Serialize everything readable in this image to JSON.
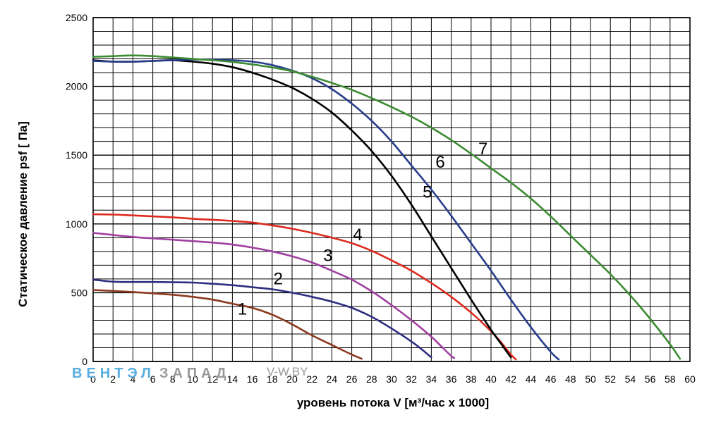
{
  "watermark": {
    "part1": "ВЕНТЭЛ",
    "part2": "ЗАПАД",
    "site": "V-W.BY",
    "color1": "#5aaee0",
    "color2": "#9a9a9a"
  },
  "chart_data": {
    "type": "line",
    "title": "",
    "xlabel": "уровень потока  V [м³/час х 1000]",
    "ylabel": "Статическое давление  psf [ Па]",
    "xlim": [
      0,
      60
    ],
    "ylim": [
      0,
      2500
    ],
    "x_ticks": [
      0,
      2,
      4,
      6,
      8,
      10,
      12,
      14,
      16,
      18,
      20,
      22,
      24,
      26,
      28,
      30,
      32,
      34,
      36,
      38,
      40,
      42,
      44,
      46,
      48,
      50,
      52,
      54,
      56,
      58,
      60
    ],
    "y_ticks": [
      0,
      500,
      1000,
      1500,
      2000,
      2500
    ],
    "grid": true,
    "legend": "none",
    "series": [
      {
        "name": "1",
        "color": "#8b3a1f",
        "points": [
          [
            0,
            520
          ],
          [
            4,
            505
          ],
          [
            8,
            485
          ],
          [
            10,
            470
          ],
          [
            12,
            450
          ],
          [
            14,
            420
          ],
          [
            16,
            390
          ],
          [
            18,
            340
          ],
          [
            20,
            270
          ],
          [
            22,
            190
          ],
          [
            24,
            120
          ],
          [
            26,
            50
          ],
          [
            27,
            20
          ]
        ],
        "label_at": [
          15,
          340
        ]
      },
      {
        "name": "2",
        "color": "#2e2e80",
        "points": [
          [
            0,
            595
          ],
          [
            2,
            580
          ],
          [
            4,
            578
          ],
          [
            6,
            578
          ],
          [
            8,
            576
          ],
          [
            10,
            574
          ],
          [
            12,
            565
          ],
          [
            14,
            555
          ],
          [
            16,
            540
          ],
          [
            18,
            525
          ],
          [
            20,
            500
          ],
          [
            22,
            470
          ],
          [
            24,
            435
          ],
          [
            26,
            390
          ],
          [
            28,
            325
          ],
          [
            30,
            240
          ],
          [
            32,
            145
          ],
          [
            33,
            90
          ],
          [
            34,
            30
          ]
        ],
        "label_at": [
          18.6,
          560
        ]
      },
      {
        "name": "3",
        "color": "#a040a0",
        "points": [
          [
            0,
            935
          ],
          [
            2,
            920
          ],
          [
            4,
            905
          ],
          [
            6,
            895
          ],
          [
            8,
            885
          ],
          [
            10,
            875
          ],
          [
            12,
            865
          ],
          [
            14,
            850
          ],
          [
            16,
            828
          ],
          [
            18,
            800
          ],
          [
            20,
            765
          ],
          [
            22,
            720
          ],
          [
            24,
            660
          ],
          [
            26,
            595
          ],
          [
            28,
            510
          ],
          [
            30,
            410
          ],
          [
            32,
            300
          ],
          [
            34,
            180
          ],
          [
            35,
            110
          ],
          [
            36,
            40
          ],
          [
            36.3,
            25
          ]
        ],
        "label_at": [
          23.6,
          730
        ]
      },
      {
        "name": "4",
        "color": "#dd2a1e",
        "points": [
          [
            0,
            1070
          ],
          [
            2,
            1068
          ],
          [
            4,
            1062
          ],
          [
            6,
            1055
          ],
          [
            8,
            1048
          ],
          [
            10,
            1038
          ],
          [
            12,
            1030
          ],
          [
            14,
            1022
          ],
          [
            16,
            1010
          ],
          [
            18,
            990
          ],
          [
            20,
            965
          ],
          [
            22,
            935
          ],
          [
            24,
            900
          ],
          [
            26,
            860
          ],
          [
            28,
            805
          ],
          [
            30,
            735
          ],
          [
            32,
            660
          ],
          [
            34,
            570
          ],
          [
            36,
            470
          ],
          [
            38,
            355
          ],
          [
            40,
            220
          ],
          [
            41,
            140
          ],
          [
            42,
            50
          ],
          [
            42.5,
            15
          ]
        ],
        "label_at": [
          26.6,
          880
        ]
      },
      {
        "name": "5",
        "color": "#000000",
        "points": [
          [
            0,
            2190
          ],
          [
            2,
            2180
          ],
          [
            4,
            2180
          ],
          [
            6,
            2185
          ],
          [
            8,
            2190
          ],
          [
            10,
            2180
          ],
          [
            12,
            2165
          ],
          [
            14,
            2140
          ],
          [
            16,
            2100
          ],
          [
            18,
            2050
          ],
          [
            20,
            1990
          ],
          [
            22,
            1910
          ],
          [
            24,
            1810
          ],
          [
            26,
            1680
          ],
          [
            28,
            1530
          ],
          [
            30,
            1350
          ],
          [
            32,
            1140
          ],
          [
            34,
            910
          ],
          [
            36,
            680
          ],
          [
            38,
            450
          ],
          [
            40,
            230
          ],
          [
            41,
            130
          ],
          [
            42,
            30
          ]
        ],
        "label_at": [
          33.6,
          1190
        ]
      },
      {
        "name": "6",
        "color": "#283c8c",
        "points": [
          [
            0,
            2185
          ],
          [
            2,
            2180
          ],
          [
            4,
            2180
          ],
          [
            6,
            2185
          ],
          [
            8,
            2190
          ],
          [
            10,
            2195
          ],
          [
            12,
            2195
          ],
          [
            14,
            2190
          ],
          [
            16,
            2180
          ],
          [
            18,
            2155
          ],
          [
            20,
            2115
          ],
          [
            22,
            2060
          ],
          [
            24,
            1980
          ],
          [
            26,
            1875
          ],
          [
            28,
            1750
          ],
          [
            30,
            1600
          ],
          [
            32,
            1425
          ],
          [
            34,
            1250
          ],
          [
            36,
            1060
          ],
          [
            38,
            860
          ],
          [
            40,
            660
          ],
          [
            42,
            450
          ],
          [
            44,
            250
          ],
          [
            46,
            70
          ],
          [
            46.8,
            15
          ]
        ],
        "label_at": [
          34.9,
          1410
        ]
      },
      {
        "name": "7",
        "color": "#3c8c32",
        "points": [
          [
            0,
            2215
          ],
          [
            2,
            2220
          ],
          [
            4,
            2225
          ],
          [
            6,
            2220
          ],
          [
            8,
            2210
          ],
          [
            10,
            2200
          ],
          [
            12,
            2190
          ],
          [
            14,
            2178
          ],
          [
            16,
            2160
          ],
          [
            18,
            2138
          ],
          [
            20,
            2110
          ],
          [
            22,
            2070
          ],
          [
            24,
            2025
          ],
          [
            26,
            1975
          ],
          [
            28,
            1915
          ],
          [
            30,
            1850
          ],
          [
            32,
            1780
          ],
          [
            34,
            1700
          ],
          [
            36,
            1610
          ],
          [
            38,
            1510
          ],
          [
            40,
            1405
          ],
          [
            42,
            1300
          ],
          [
            44,
            1185
          ],
          [
            46,
            1055
          ],
          [
            48,
            915
          ],
          [
            50,
            775
          ],
          [
            52,
            635
          ],
          [
            54,
            480
          ],
          [
            56,
            310
          ],
          [
            58,
            125
          ],
          [
            59,
            20
          ]
        ],
        "label_at": [
          39.2,
          1505
        ]
      }
    ]
  }
}
